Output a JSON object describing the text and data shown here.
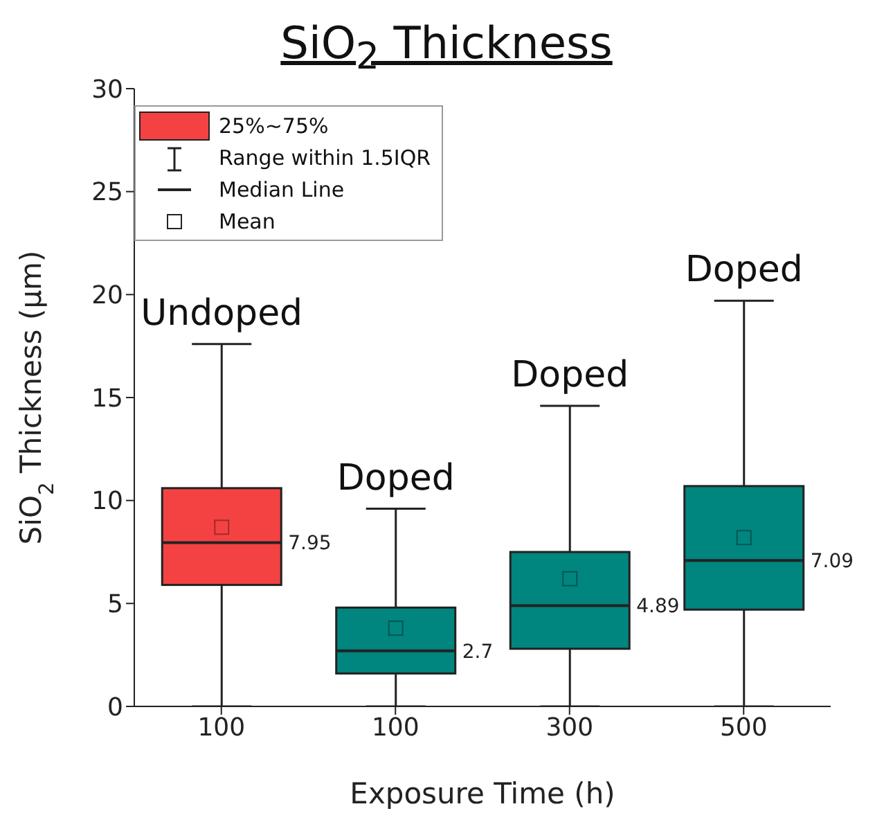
{
  "chart_data": {
    "type": "box",
    "title": "SiO$_{2}$ Thickness",
    "xlabel": "Exposure Time (h)",
    "ylabel": "SiO$_{2}$ Thickness (μm)",
    "categories": [
      "100",
      "100",
      "300",
      "500"
    ],
    "series": [
      {
        "name": "25%~75%",
        "color": "#f44242",
        "colors": [
          "#f44242",
          "#00857f",
          "#00857f",
          "#00857f"
        ],
        "boxes": [
          {
            "low": 0,
            "q1": 5.9,
            "median": 7.95,
            "q3": 10.6,
            "high": 17.6,
            "mean": 8.7
          },
          {
            "low": 0,
            "q1": 1.6,
            "median": 2.7,
            "q3": 4.8,
            "high": 9.6,
            "mean": 3.8
          },
          {
            "low": 0,
            "q1": 2.8,
            "median": 4.89,
            "q3": 7.5,
            "high": 14.6,
            "mean": 6.2
          },
          {
            "low": 0,
            "q1": 4.7,
            "median": 7.09,
            "q3": 10.7,
            "high": 19.7,
            "mean": 8.2
          }
        ],
        "value_labels": [
          "7.95",
          "2.7",
          "4.89",
          "7.09"
        ]
      }
    ],
    "annotations": [
      "Undoped",
      "Doped",
      "Doped",
      "Doped",
      "Range within 1.5IQR",
      "Median Line",
      "Mean"
    ],
    "ylim": [
      0,
      30
    ],
    "yticks": [
      0,
      5,
      10,
      15,
      20,
      25,
      30
    ],
    "legend": "top left",
    "marker": "square"
  }
}
